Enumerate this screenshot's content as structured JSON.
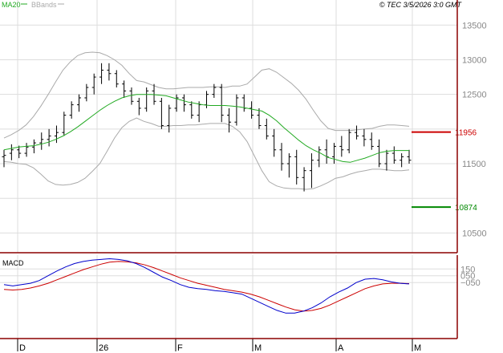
{
  "header": {
    "legend_ma": "MA20",
    "legend_bbands": "BBands",
    "timestamp": "© TEC 3/5/2026 3:0 GMT"
  },
  "colors": {
    "ma": "#22aa22",
    "bbands": "#aaaaaa",
    "grid": "#dddddd",
    "border": "#8b0000",
    "macd": "#0000cc",
    "signal": "#cc0000",
    "resistance": "#cc0000",
    "support": "#008800"
  },
  "chart_data": [
    {
      "type": "candlestick",
      "ylim": [
        10250,
        13700
      ],
      "yticks": [
        10500,
        11000,
        11500,
        12000,
        12500,
        13000,
        13500
      ],
      "ytick_labels": [
        "10500",
        "",
        "11500",
        "",
        "12500",
        "13000",
        "13500"
      ],
      "grid": true,
      "levels": [
        {
          "name": "resistance",
          "value": 11956,
          "label": "11956"
        },
        {
          "name": "support",
          "value": 10874,
          "label": "10874"
        }
      ],
      "series": [
        {
          "name": "MA20",
          "values": [
            11700,
            11720,
            11740,
            11750,
            11760,
            11780,
            11810,
            11850,
            11900,
            11960,
            12030,
            12110,
            12190,
            12270,
            12340,
            12400,
            12450,
            12480,
            12500,
            12500,
            12500,
            12490,
            12480,
            12450,
            12420,
            12390,
            12370,
            12350,
            12340,
            12340,
            12340,
            12330,
            12320,
            12300,
            12280,
            12260,
            12200,
            12120,
            12020,
            11930,
            11840,
            11760,
            11700,
            11650,
            11590,
            11560,
            11530,
            11520,
            11550,
            11580,
            11620,
            11660,
            11680,
            11690,
            11690,
            11690
          ]
        },
        {
          "name": "BBands upper",
          "values": [
            11870,
            11920,
            11980,
            12060,
            12180,
            12330,
            12500,
            12680,
            12850,
            12970,
            13060,
            13100,
            13110,
            13100,
            13060,
            13000,
            12920,
            12800,
            12700,
            12680,
            12640,
            12600,
            12580,
            12580,
            12590,
            12600,
            12600,
            12600,
            12610,
            12610,
            12600,
            12620,
            12620,
            12650,
            12750,
            12850,
            12870,
            12820,
            12740,
            12660,
            12560,
            12430,
            12270,
            12120,
            12010,
            11980,
            11980,
            11980,
            11990,
            12000,
            12010,
            12040,
            12060,
            12060,
            12050,
            12040
          ]
        },
        {
          "name": "BBands lower",
          "values": [
            11530,
            11520,
            11500,
            11490,
            11440,
            11350,
            11250,
            11200,
            11190,
            11200,
            11230,
            11290,
            11390,
            11500,
            11680,
            11870,
            12020,
            12110,
            12160,
            12110,
            12080,
            12040,
            12040,
            12050,
            12050,
            12060,
            12060,
            12070,
            12080,
            12080,
            12080,
            12040,
            11960,
            11820,
            11610,
            11400,
            11240,
            11180,
            11150,
            11140,
            11140,
            11130,
            11140,
            11180,
            11230,
            11290,
            11310,
            11350,
            11380,
            11400,
            11420,
            11420,
            11410,
            11400,
            11400,
            11410
          ]
        }
      ],
      "ohlc": [
        [
          11600,
          11700,
          11450,
          11620
        ],
        [
          11650,
          11780,
          11550,
          11700
        ],
        [
          11700,
          11760,
          11580,
          11650
        ],
        [
          11650,
          11800,
          11600,
          11740
        ],
        [
          11740,
          11850,
          11650,
          11800
        ],
        [
          11800,
          11950,
          11700,
          11850
        ],
        [
          11850,
          12000,
          11750,
          11900
        ],
        [
          11900,
          12050,
          11800,
          11950
        ],
        [
          11950,
          12250,
          11900,
          12200
        ],
        [
          12200,
          12400,
          12150,
          12350
        ],
        [
          12350,
          12500,
          12250,
          12450
        ],
        [
          12450,
          12650,
          12400,
          12600
        ],
        [
          12600,
          12800,
          12500,
          12750
        ],
        [
          12750,
          12950,
          12650,
          12850
        ],
        [
          12850,
          12950,
          12700,
          12800
        ],
        [
          12800,
          12850,
          12600,
          12650
        ],
        [
          12650,
          12700,
          12450,
          12550
        ],
        [
          12550,
          12600,
          12350,
          12400
        ],
        [
          12400,
          12450,
          12200,
          12300
        ],
        [
          12300,
          12600,
          12250,
          12550
        ],
        [
          12550,
          12650,
          12350,
          12400
        ],
        [
          12400,
          12450,
          12000,
          12050
        ],
        [
          12050,
          12350,
          11950,
          12300
        ],
        [
          12300,
          12500,
          12250,
          12450
        ],
        [
          12450,
          12500,
          12250,
          12350
        ],
        [
          12350,
          12400,
          12150,
          12200
        ],
        [
          12200,
          12400,
          12100,
          12350
        ],
        [
          12350,
          12550,
          12300,
          12500
        ],
        [
          12500,
          12650,
          12450,
          12600
        ],
        [
          12600,
          12650,
          12100,
          12200
        ],
        [
          12200,
          12300,
          11950,
          12100
        ],
        [
          12100,
          12500,
          12050,
          12450
        ],
        [
          12450,
          12500,
          12250,
          12300
        ],
        [
          12300,
          12400,
          12150,
          12200
        ],
        [
          12200,
          12300,
          12000,
          12050
        ],
        [
          12050,
          12150,
          11850,
          11900
        ],
        [
          11900,
          12000,
          11600,
          11700
        ],
        [
          11700,
          11800,
          11400,
          11500
        ],
        [
          11500,
          11650,
          11300,
          11600
        ],
        [
          11600,
          11700,
          11200,
          11300
        ],
        [
          11300,
          11450,
          11100,
          11400
        ],
        [
          11400,
          11650,
          11150,
          11550
        ],
        [
          11550,
          11750,
          11450,
          11700
        ],
        [
          11700,
          11850,
          11500,
          11600
        ],
        [
          11600,
          11800,
          11500,
          11750
        ],
        [
          11750,
          11900,
          11600,
          11700
        ],
        [
          11700,
          12000,
          11650,
          11950
        ],
        [
          11950,
          12050,
          11850,
          11900
        ],
        [
          11900,
          12000,
          11750,
          11850
        ],
        [
          11850,
          11950,
          11700,
          11750
        ],
        [
          11750,
          11850,
          11450,
          11500
        ],
        [
          11500,
          11700,
          11400,
          11650
        ],
        [
          11650,
          11750,
          11500,
          11550
        ],
        [
          11550,
          11650,
          11450,
          11600
        ],
        [
          11600,
          11700,
          11500,
          11550
        ]
      ]
    },
    {
      "type": "line",
      "title": "MACD",
      "ylim": [
        -850,
        330
      ],
      "yticks": [
        150,
        50,
        -50
      ],
      "ytick_labels": [
        "150",
        "050",
        "−050"
      ],
      "grid": true,
      "series": [
        {
          "name": "MACD",
          "values": [
            -80,
            -100,
            -80,
            -60,
            -20,
            50,
            120,
            180,
            230,
            260,
            280,
            290,
            300,
            290,
            270,
            230,
            170,
            100,
            30,
            -20,
            -80,
            -120,
            -140,
            -150,
            -170,
            -180,
            -200,
            -220,
            -280,
            -340,
            -400,
            -460,
            -500,
            -500,
            -470,
            -420,
            -350,
            -260,
            -190,
            -130,
            -50,
            0,
            10,
            -10,
            -40,
            -60,
            -70
          ]
        },
        {
          "name": "Signal",
          "values": [
            -150,
            -160,
            -150,
            -130,
            -100,
            -60,
            -10,
            40,
            90,
            140,
            180,
            220,
            250,
            260,
            255,
            240,
            210,
            170,
            120,
            70,
            20,
            -20,
            -60,
            -90,
            -120,
            -150,
            -170,
            -190,
            -220,
            -260,
            -310,
            -360,
            -410,
            -450,
            -470,
            -460,
            -430,
            -380,
            -320,
            -260,
            -200,
            -140,
            -100,
            -70,
            -60,
            -60,
            -65
          ]
        }
      ]
    }
  ],
  "x_axis": {
    "labels": [
      "D",
      "26",
      "F",
      "M",
      "A",
      "M"
    ]
  }
}
